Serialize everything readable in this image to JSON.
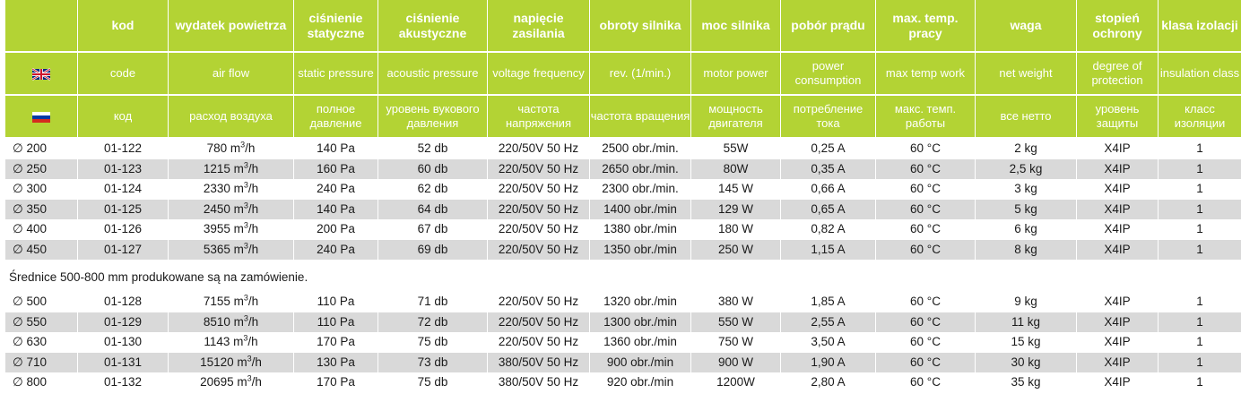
{
  "headers": {
    "pl": [
      "",
      "kod",
      "wydatek powietrza",
      "ciśnienie statyczne",
      "ciśnienie akustyczne",
      "napięcie zasilania",
      "obroty silnika",
      "moc silnika",
      "pobór prądu",
      "max. temp. pracy",
      "waga",
      "stopień ochrony",
      "klasa izolacji"
    ],
    "en": [
      "",
      "code",
      "air flow",
      "static pressure",
      "acoustic pressure",
      "voltage frequency",
      "rev. (1/min.)",
      "motor power",
      "power consumption",
      "max temp work",
      "net weight",
      "degree of protection",
      "insulation class"
    ],
    "ru": [
      "",
      "код",
      "расход воздуха",
      "полное давление",
      "уровень вукового давления",
      "частота напряжения",
      "частота вращения",
      "мощность двигателя",
      "потребление тока",
      "макс. темп. работы",
      "все нетто",
      "уровень защиты",
      "класс изоляции"
    ]
  },
  "flags": {
    "en": "uk-flag-icon",
    "ru": "russia-flag-icon"
  },
  "rows_top": [
    [
      "∅ 200",
      "01-122",
      "780",
      "140 Pa",
      "52 db",
      "220/50V 50 Hz",
      "2500 obr./min.",
      "55W",
      "0,25 A",
      "60 °C",
      "2 kg",
      "X4IP",
      "1"
    ],
    [
      "∅ 250",
      "01-123",
      "1215",
      "160 Pa",
      "60 db",
      "220/50V 50 Hz",
      "2650 obr./min.",
      "80W",
      "0,35 A",
      "60 °C",
      "2,5 kg",
      "X4IP",
      "1"
    ],
    [
      "∅ 300",
      "01-124",
      "2330",
      "240 Pa",
      "62 db",
      "220/50V 50 Hz",
      "2300 obr./min.",
      "145 W",
      "0,66 A",
      "60 °C",
      "3 kg",
      "X4IP",
      "1"
    ],
    [
      "∅ 350",
      "01-125",
      "2450",
      "140 Pa",
      "64 db",
      "220/50V 50 Hz",
      "1400 obr./min",
      "129 W",
      "0,65 A",
      "60 °C",
      "5 kg",
      "X4IP",
      "1"
    ],
    [
      "∅ 400",
      "01-126",
      "3955",
      "200 Pa",
      "67 db",
      "220/50V 50 Hz",
      "1380 obr./min",
      "180 W",
      "0,82 A",
      "60 °C",
      "6 kg",
      "X4IP",
      "1"
    ],
    [
      "∅ 450",
      "01-127",
      "5365",
      "240 Pa",
      "69 db",
      "220/50V 50 Hz",
      "1350 obr./min",
      "250 W",
      "1,15 A",
      "60 °C",
      "8 kg",
      "X4IP",
      "1"
    ]
  ],
  "note": "Średnice 500-800 mm produkowane są na zamówienie.",
  "rows_bottom": [
    [
      "∅ 500",
      "01-128",
      "7155",
      "110 Pa",
      "71 db",
      "220/50V 50 Hz",
      "1320 obr./min",
      "380 W",
      "1,85 A",
      "60 °C",
      "9 kg",
      "X4IP",
      "1"
    ],
    [
      "∅ 550",
      "01-129",
      "8510",
      "110 Pa",
      "72 db",
      "220/50V 50 Hz",
      "1300 obr./min",
      "550 W",
      "2,55 A",
      "60 °C",
      "11 kg",
      "X4IP",
      "1"
    ],
    [
      "∅ 630",
      "01-130",
      "1143",
      "170 Pa",
      "75 db",
      "220/50V 50 Hz",
      "1360 obr./min",
      "750 W",
      "3,50 A",
      "60 °C",
      "15 kg",
      "X4IP",
      "1"
    ],
    [
      "∅ 710",
      "01-131",
      "15120",
      "130 Pa",
      "73 db",
      "380/50V 50 Hz",
      "900 obr./min",
      "900 W",
      "1,90 A",
      "60 °C",
      "30 kg",
      "X4IP",
      "1"
    ],
    [
      "∅ 800",
      "01-132",
      "20695",
      "170 Pa",
      "75 db",
      "380/50V 50 Hz",
      "920 obr./min",
      "1200W",
      "2,80 A",
      "60 °C",
      "35 kg",
      "X4IP",
      "1"
    ]
  ],
  "airflow_unit": {
    "base": "m",
    "exp": "3",
    "tail": "/h"
  },
  "colors": {
    "header_bg": "#b3d334",
    "header_text": "#ffffff",
    "stripe": "#d9d9d9"
  }
}
